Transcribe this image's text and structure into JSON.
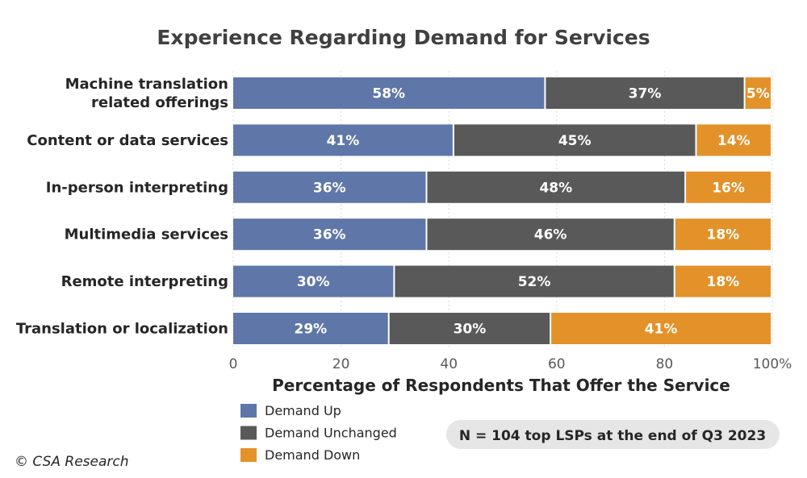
{
  "chart_data": {
    "type": "bar",
    "orientation": "horizontal",
    "stacked": true,
    "title": "Experience Regarding Demand for Services",
    "xlabel": "Percentage of Respondents That Offer the Service",
    "ylabel": "",
    "xlim": [
      0,
      100
    ],
    "x_ticks": [
      "0",
      "20",
      "40",
      "60",
      "80",
      "100%"
    ],
    "x_tick_values": [
      0,
      20,
      40,
      60,
      80,
      100
    ],
    "categories": [
      [
        "Machine translation",
        "related offerings"
      ],
      [
        "Content or data services"
      ],
      [
        "In-person interpreting"
      ],
      [
        "Multimedia services"
      ],
      [
        "Remote interpreting"
      ],
      [
        "Translation or localization"
      ]
    ],
    "series": [
      {
        "name": "Demand Up",
        "color": "#5f77a8",
        "values": [
          58,
          41,
          36,
          36,
          30,
          29
        ],
        "labels": [
          "58%",
          "41%",
          "36%",
          "36%",
          "30%",
          "29%"
        ]
      },
      {
        "name": "Demand Unchanged",
        "color": "#595959",
        "values": [
          37,
          45,
          48,
          46,
          52,
          30
        ],
        "labels": [
          "37%",
          "45%",
          "48%",
          "46%",
          "52%",
          "30%"
        ]
      },
      {
        "name": "Demand Down",
        "color": "#e39229",
        "values": [
          5,
          14,
          16,
          18,
          18,
          41
        ],
        "labels": [
          "5%",
          "14%",
          "16%",
          "18%",
          "18%",
          "41%"
        ]
      }
    ],
    "legend_position": "bottom-left",
    "grid": true
  },
  "note": "N = 104 top LSPs at the end of Q3 2023",
  "copyright": "© CSA Research"
}
